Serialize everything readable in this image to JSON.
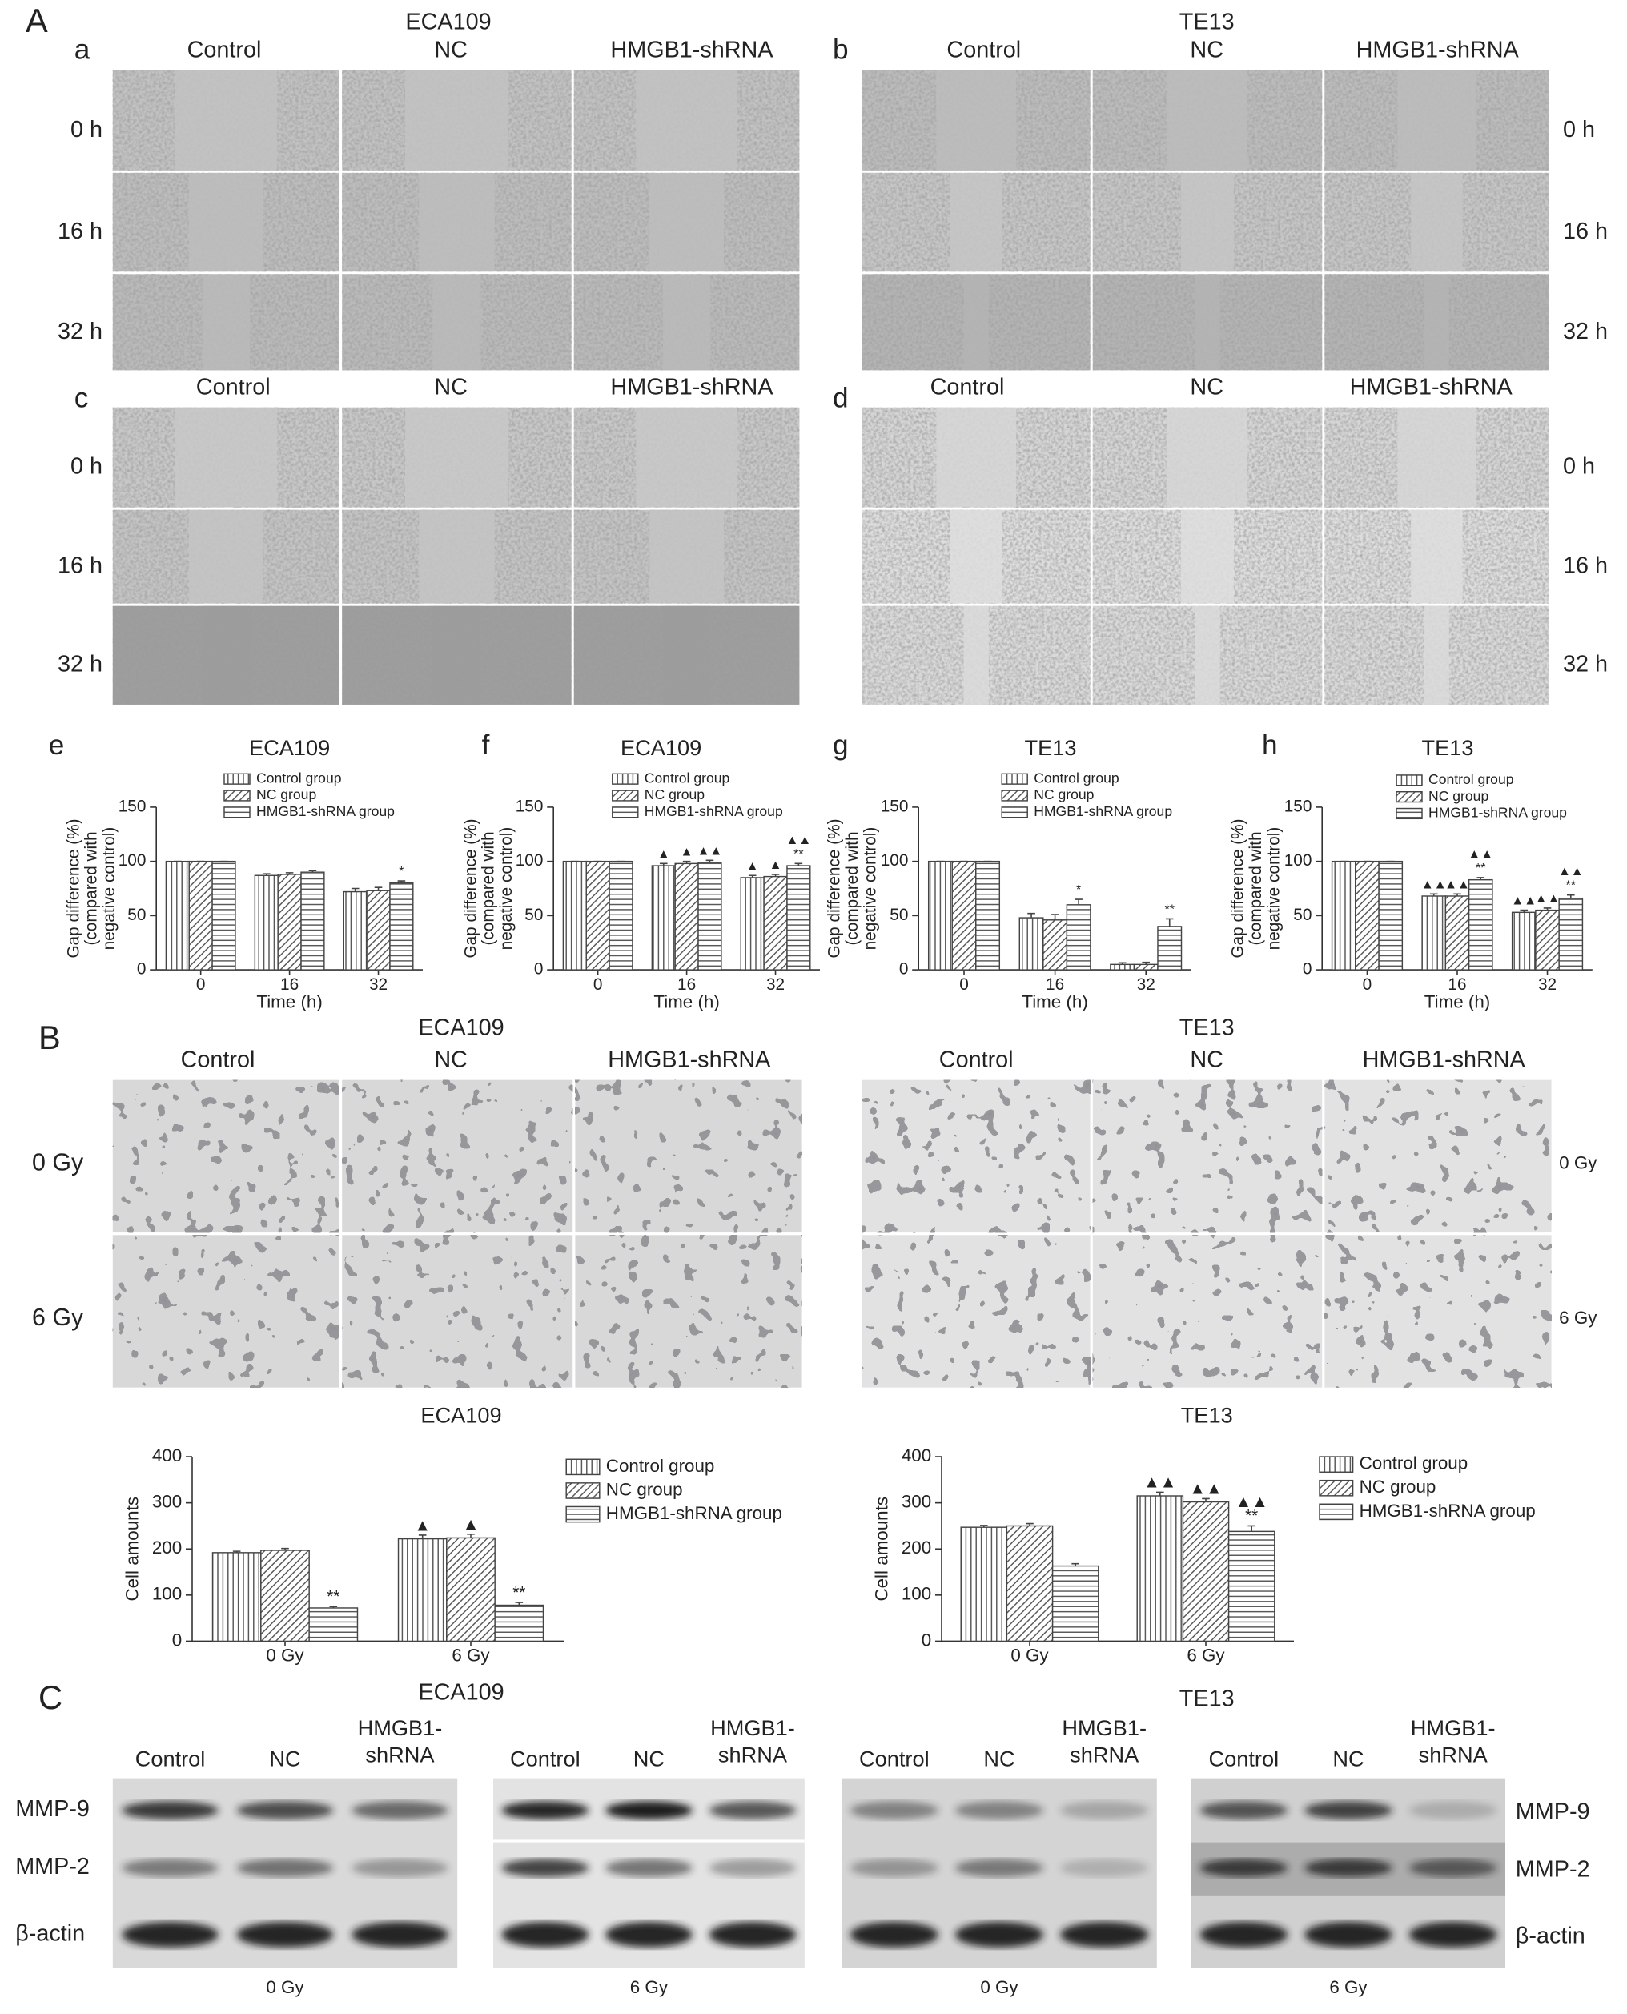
{
  "sections": [
    "A",
    "B",
    "C"
  ],
  "wound": {
    "panels": [
      {
        "label": "a",
        "title": "ECA109",
        "columns": [
          "Control",
          "NC",
          "HMGB1-shRNA"
        ],
        "rows": [
          "0 h",
          "16 h",
          "32 h"
        ]
      },
      {
        "label": "b",
        "title": "TE13",
        "columns": [
          "Control",
          "NC",
          "HMGB1-shRNA"
        ],
        "rows": [
          "0 h",
          "16 h",
          "32 h"
        ]
      },
      {
        "label": "c",
        "columns": [
          "Control",
          "NC",
          "HMGB1-shRNA"
        ],
        "rows": [
          "0 h",
          "16 h",
          "32 h"
        ]
      },
      {
        "label": "d",
        "columns": [
          "Control",
          "NC",
          "HMGB1-shRNA"
        ],
        "rows": [
          "0 h",
          "16 h",
          "32 h"
        ]
      }
    ]
  },
  "transwell": {
    "panels": [
      {
        "title": "ECA109",
        "columns": [
          "Control",
          "NC",
          "HMGB1-shRNA"
        ],
        "rows": [
          "0 Gy",
          "6 Gy"
        ]
      },
      {
        "title": "TE13",
        "columns": [
          "Control",
          "NC",
          "HMGB1-shRNA"
        ],
        "rows": [
          "0 Gy",
          "6 Gy"
        ]
      }
    ]
  },
  "chart_data": [
    {
      "type": "bar",
      "panel": "e",
      "title": "ECA109",
      "xlabel": "Time (h)",
      "ylabel": [
        "Gap difference (%)",
        "(compared with",
        "negative control)"
      ],
      "categories": [
        "0",
        "16",
        "32"
      ],
      "ylim": [
        0,
        150
      ],
      "yticks": [
        0,
        50,
        100,
        150
      ],
      "legend": "top",
      "series": [
        {
          "name": "Control group",
          "pattern": "vertical",
          "color": "#444444",
          "values": [
            100,
            87,
            72
          ],
          "errors": [
            0,
            1.5,
            3
          ]
        },
        {
          "name": "NC group",
          "pattern": "diagonal",
          "color": "#444444",
          "values": [
            100,
            88,
            73
          ],
          "errors": [
            0,
            1.5,
            3
          ]
        },
        {
          "name": "HMGB1-shRNA group",
          "pattern": "horizontal",
          "color": "#444444",
          "values": [
            100,
            90,
            80
          ],
          "errors": [
            0,
            1.5,
            2
          ],
          "annotations": [
            null,
            null,
            "*"
          ]
        }
      ]
    },
    {
      "type": "bar",
      "panel": "f",
      "title": "ECA109",
      "xlabel": "Time (h)",
      "ylabel": [
        "Gap difference (%)",
        "(compared with",
        "negative control)"
      ],
      "categories": [
        "0",
        "16",
        "32"
      ],
      "ylim": [
        0,
        150
      ],
      "yticks": [
        0,
        50,
        100,
        150
      ],
      "legend": "top",
      "series": [
        {
          "name": "Control group",
          "pattern": "vertical",
          "color": "#444444",
          "values": [
            100,
            96,
            85
          ],
          "errors": [
            0,
            2,
            2
          ],
          "annotations": [
            null,
            "▲",
            "▲"
          ]
        },
        {
          "name": "NC group",
          "pattern": "diagonal",
          "color": "#444444",
          "values": [
            100,
            98,
            86
          ],
          "errors": [
            0,
            2,
            2
          ],
          "annotations": [
            null,
            "▲",
            "▲"
          ]
        },
        {
          "name": "HMGB1-shRNA group",
          "pattern": "horizontal",
          "color": "#444444",
          "values": [
            100,
            99,
            96
          ],
          "errors": [
            0,
            2,
            2
          ],
          "annotations": [
            null,
            "▲▲",
            [
              "▲▲",
              "**"
            ]
          ]
        }
      ]
    },
    {
      "type": "bar",
      "panel": "g",
      "title": "TE13",
      "xlabel": "Time (h)",
      "ylabel": [
        "Gap difference (%)",
        "(compared with",
        "negative control)"
      ],
      "categories": [
        "0",
        "16",
        "32"
      ],
      "ylim": [
        0,
        150
      ],
      "yticks": [
        0,
        50,
        100,
        150
      ],
      "legend": "top",
      "series": [
        {
          "name": "Control group",
          "pattern": "vertical",
          "color": "#444444",
          "values": [
            100,
            48,
            5
          ],
          "errors": [
            0,
            4,
            1.5
          ]
        },
        {
          "name": "NC group",
          "pattern": "diagonal",
          "color": "#444444",
          "values": [
            100,
            46,
            5
          ],
          "errors": [
            0,
            5,
            2
          ]
        },
        {
          "name": "HMGB1-shRNA group",
          "pattern": "horizontal",
          "color": "#444444",
          "values": [
            100,
            60,
            40
          ],
          "errors": [
            0,
            5,
            7
          ],
          "annotations": [
            null,
            "*",
            "**"
          ]
        }
      ]
    },
    {
      "type": "bar",
      "panel": "h",
      "title": "TE13",
      "xlabel": "Time (h)",
      "ylabel": [
        "Gap difference (%)",
        "(compared with",
        "negative control)"
      ],
      "categories": [
        "0",
        "16",
        "32"
      ],
      "ylim": [
        0,
        150
      ],
      "yticks": [
        0,
        50,
        100,
        150
      ],
      "legend": "top",
      "series": [
        {
          "name": "Control group",
          "pattern": "vertical",
          "color": "#444444",
          "values": [
            100,
            68,
            53
          ],
          "errors": [
            0,
            2,
            2
          ],
          "annotations": [
            null,
            "▲▲",
            "▲▲"
          ]
        },
        {
          "name": "NC group",
          "pattern": "diagonal",
          "color": "#444444",
          "values": [
            100,
            68,
            55
          ],
          "errors": [
            0,
            2,
            2
          ],
          "annotations": [
            null,
            "▲▲",
            "▲▲"
          ]
        },
        {
          "name": "HMGB1-shRNA group",
          "pattern": "horizontal",
          "color": "#444444",
          "values": [
            100,
            83,
            66
          ],
          "errors": [
            0,
            2,
            3
          ],
          "annotations": [
            null,
            [
              "▲▲",
              "**"
            ],
            [
              "▲▲",
              "**"
            ]
          ]
        }
      ]
    },
    {
      "type": "bar",
      "title": "ECA109",
      "ylabel": "Cell amounts",
      "categories": [
        "0 Gy",
        "6 Gy"
      ],
      "ylim": [
        0,
        400
      ],
      "yticks": [
        0,
        100,
        200,
        300,
        400
      ],
      "legend": "right",
      "series": [
        {
          "name": "Control group",
          "pattern": "vertical",
          "color": "#444444",
          "values": [
            192,
            222
          ],
          "errors": [
            3,
            8
          ],
          "annotations": [
            null,
            "▲"
          ]
        },
        {
          "name": "NC group",
          "pattern": "diagonal",
          "color": "#444444",
          "values": [
            197,
            224
          ],
          "errors": [
            4,
            8
          ],
          "annotations": [
            null,
            "▲"
          ]
        },
        {
          "name": "HMGB1-shRNA group",
          "pattern": "horizontal",
          "color": "#444444",
          "values": [
            72,
            78
          ],
          "errors": [
            3,
            6
          ],
          "annotations": [
            "**",
            "**"
          ]
        }
      ]
    },
    {
      "type": "bar",
      "title": "TE13",
      "ylabel": "Cell amounts",
      "categories": [
        "0 Gy",
        "6 Gy"
      ],
      "ylim": [
        0,
        400
      ],
      "yticks": [
        0,
        100,
        200,
        300,
        400
      ],
      "legend": "right",
      "series": [
        {
          "name": "Control group",
          "pattern": "vertical",
          "color": "#444444",
          "values": [
            247,
            315
          ],
          "errors": [
            4,
            8
          ],
          "annotations": [
            null,
            "▲▲"
          ]
        },
        {
          "name": "NC group",
          "pattern": "diagonal",
          "color": "#444444",
          "values": [
            250,
            302
          ],
          "errors": [
            5,
            7
          ],
          "annotations": [
            null,
            "▲▲"
          ]
        },
        {
          "name": "HMGB1-shRNA group",
          "pattern": "horizontal",
          "color": "#444444",
          "values": [
            163,
            238
          ],
          "errors": [
            5,
            12
          ],
          "annotations": [
            null,
            [
              "▲▲",
              "**"
            ]
          ]
        }
      ]
    }
  ],
  "western": {
    "cell_lines": [
      "ECA109",
      "TE13"
    ],
    "lanes": [
      "Control",
      "NC",
      [
        "HMGB1-",
        "shRNA"
      ]
    ],
    "doses": [
      "0 Gy",
      "6 Gy",
      "0 Gy",
      "6 Gy"
    ],
    "markers": [
      "MMP-9",
      "MMP-2",
      "β-actin"
    ]
  }
}
